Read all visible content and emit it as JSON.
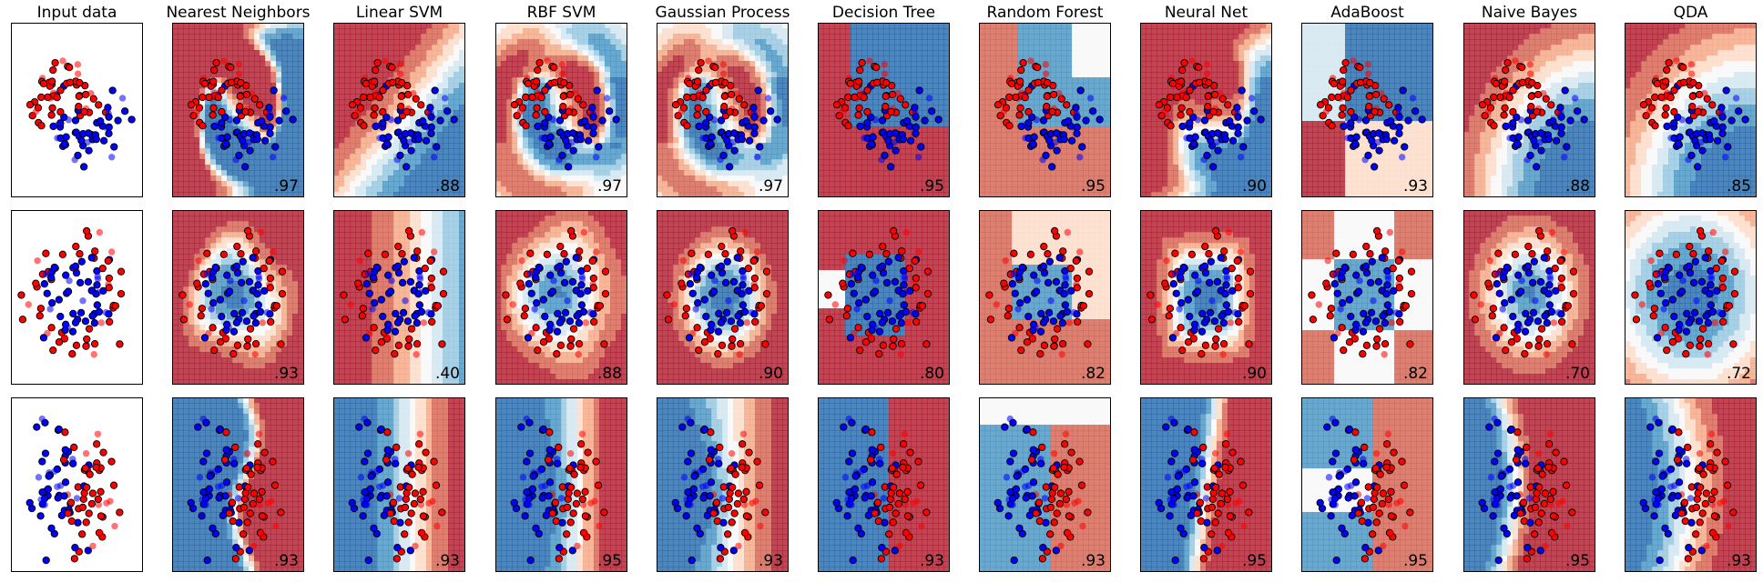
{
  "figure": {
    "columns": [
      "Input data",
      "Nearest Neighbors",
      "Linear SVM",
      "RBF SVM",
      "Gaussian Process",
      "Decision Tree",
      "Random Forest",
      "Neural Net",
      "AdaBoost",
      "Naive Bayes",
      "QDA"
    ],
    "datasets": [
      "moons",
      "circles",
      "linearly separable"
    ],
    "colors": {
      "class0": "#ff0000",
      "class1": "#0000ff",
      "region_high_red": "#b2182b",
      "region_mid_red": "#f4a582",
      "region_neutral": "#f7f7f7",
      "region_mid_blue": "#92c5de",
      "region_high_blue": "#2166ac",
      "edge": "#000000"
    }
  },
  "chart_data": {
    "type": "scatter",
    "description_scale": "decision boundary probability shading (RdBu), training points opaque, test points semi-transparent",
    "scores": [
      [
        ".97",
        ".88",
        ".97",
        ".97",
        ".95",
        ".95",
        ".90",
        ".93",
        ".88",
        ".85"
      ],
      [
        ".93",
        ".40",
        ".88",
        ".90",
        ".80",
        ".82",
        ".90",
        ".82",
        ".70",
        ".72"
      ],
      [
        ".93",
        ".93",
        ".95",
        ".93",
        ".93",
        ".93",
        ".95",
        ".95",
        ".95",
        ".93"
      ]
    ],
    "grid": false,
    "ticks": false
  }
}
